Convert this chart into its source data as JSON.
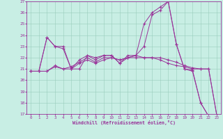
{
  "xlabel": "Windchill (Refroidissement éolien,°C)",
  "background_color": "#c8eee4",
  "line_color": "#993399",
  "grid_color": "#99ccbb",
  "xlim": [
    -0.5,
    23.5
  ],
  "ylim": [
    17,
    27
  ],
  "yticks": [
    17,
    18,
    19,
    20,
    21,
    22,
    23,
    24,
    25,
    26,
    27
  ],
  "xticks": [
    0,
    1,
    2,
    3,
    4,
    5,
    6,
    7,
    8,
    9,
    10,
    11,
    12,
    13,
    14,
    15,
    16,
    17,
    18,
    19,
    20,
    21,
    22,
    23
  ],
  "lines": [
    {
      "x": [
        0,
        1,
        2,
        3,
        4,
        5,
        6,
        7,
        8,
        9,
        10,
        11,
        12,
        13,
        14,
        15,
        16,
        17,
        18,
        19,
        20,
        21,
        22,
        23
      ],
      "y": [
        20.8,
        20.8,
        23.8,
        23.0,
        22.8,
        21.0,
        21.8,
        22.2,
        21.8,
        22.2,
        22.2,
        21.5,
        22.2,
        22.2,
        25.0,
        26.0,
        26.5,
        27.0,
        23.2,
        21.0,
        20.8,
        18.0,
        16.8,
        16.8
      ]
    },
    {
      "x": [
        0,
        1,
        2,
        3,
        4,
        5,
        6,
        7,
        8,
        9,
        10,
        11,
        12,
        13,
        14,
        15,
        16,
        17,
        18,
        19,
        20,
        21,
        22,
        23
      ],
      "y": [
        20.8,
        20.8,
        20.8,
        21.2,
        21.0,
        21.0,
        21.5,
        21.8,
        21.5,
        21.8,
        22.0,
        21.8,
        22.0,
        22.0,
        22.0,
        22.0,
        21.8,
        21.5,
        21.3,
        21.2,
        21.0,
        21.0,
        21.0,
        16.9
      ]
    },
    {
      "x": [
        0,
        1,
        2,
        3,
        4,
        5,
        6,
        7,
        8,
        9,
        10,
        11,
        12,
        13,
        14,
        15,
        16,
        17,
        18,
        19,
        20,
        21,
        22,
        23
      ],
      "y": [
        20.8,
        20.8,
        20.8,
        21.3,
        21.0,
        21.2,
        21.6,
        22.0,
        21.6,
        22.0,
        22.0,
        21.8,
        22.0,
        22.2,
        22.0,
        22.0,
        22.0,
        21.8,
        21.6,
        21.3,
        21.1,
        21.0,
        21.0,
        16.9
      ]
    },
    {
      "x": [
        0,
        1,
        2,
        3,
        4,
        5,
        6,
        7,
        8,
        9,
        10,
        11,
        12,
        13,
        14,
        15,
        16,
        17,
        18,
        19,
        20,
        21,
        22,
        23
      ],
      "y": [
        20.8,
        20.8,
        23.8,
        23.0,
        23.0,
        21.0,
        21.0,
        22.2,
        22.0,
        22.2,
        22.2,
        21.5,
        22.0,
        22.2,
        23.0,
        25.8,
        26.2,
        27.0,
        23.2,
        21.0,
        20.9,
        18.0,
        16.8,
        16.8
      ]
    }
  ]
}
